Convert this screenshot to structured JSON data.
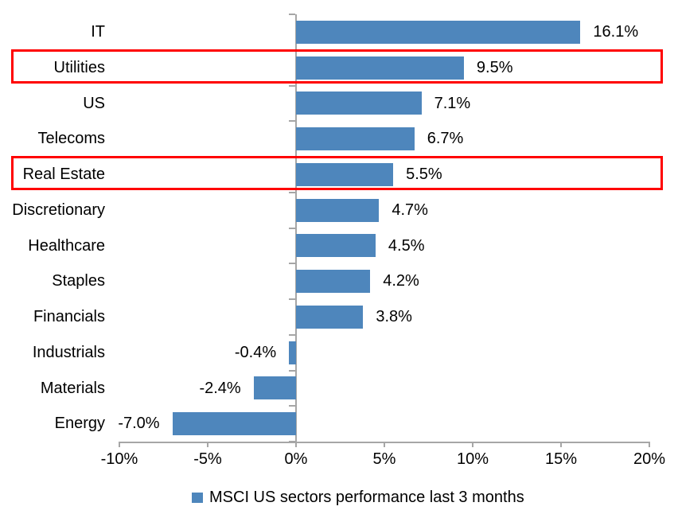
{
  "chart_data": {
    "type": "bar",
    "orientation": "horizontal",
    "title": "",
    "categories": [
      "IT",
      "Utilities",
      "US",
      "Telecoms",
      "Real Estate",
      "Discretionary",
      "Healthcare",
      "Staples",
      "Financials",
      "Industrials",
      "Materials",
      "Energy"
    ],
    "values": [
      16.1,
      9.5,
      7.1,
      6.7,
      5.5,
      4.7,
      4.5,
      4.2,
      3.8,
      -0.4,
      -2.4,
      -7.0
    ],
    "value_labels": [
      "16.1%",
      "9.5%",
      "7.1%",
      "6.7%",
      "5.5%",
      "4.7%",
      "4.5%",
      "4.2%",
      "3.8%",
      "-0.4%",
      "-2.4%",
      "-7.0%"
    ],
    "x_tick_labels": [
      "-10%",
      "-5%",
      "0%",
      "5%",
      "10%",
      "15%",
      "20%"
    ],
    "x_tick_values": [
      -10,
      -5,
      0,
      5,
      10,
      15,
      20
    ],
    "xlim": [
      -10,
      20
    ],
    "grid": false,
    "legend": "MSCI US sectors performance last 3 months",
    "legend_position": "bottom-center",
    "highlighted_categories": [
      "Utilities",
      "Real Estate"
    ],
    "colors": {
      "bar": "#4E86BC",
      "axis": "#A6A6A6",
      "highlight": "#FF0000",
      "text": "#000000",
      "background": "#FFFFFF"
    }
  }
}
